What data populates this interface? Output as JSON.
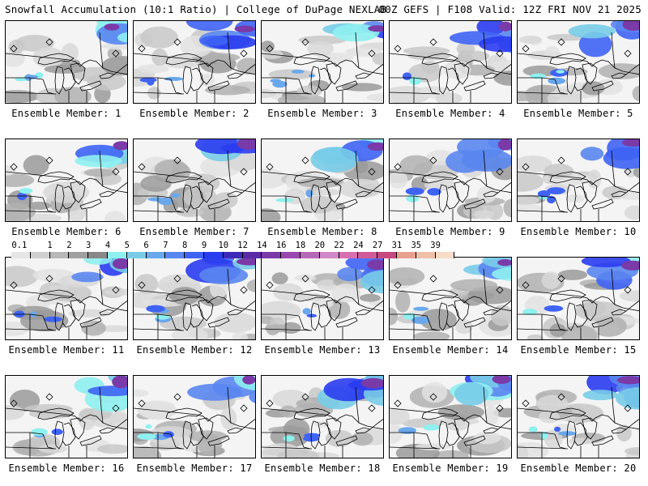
{
  "header": {
    "title": "Snowfall Accumulation (10:1 Ratio) | College of DuPage NEXLAB",
    "run_info": "00Z GEFS | F108 Valid: 12Z FRI NOV 21 2025"
  },
  "legend": {
    "ticks": [
      "0.1",
      "1",
      "2",
      "3",
      "4",
      "5",
      "6",
      "7",
      "8",
      "9",
      "10",
      "12",
      "14",
      "16",
      "18",
      "20",
      "22",
      "24",
      "27",
      "31",
      "35",
      "39"
    ],
    "colors": [
      "#e6e6e6",
      "#cfcfcf",
      "#b8b8b8",
      "#a0a0a0",
      "#888888",
      "#8ff0f0",
      "#78cce8",
      "#6aa8ec",
      "#5a86f0",
      "#3f64f4",
      "#2a3cf0",
      "#3e2ab8",
      "#5a2aa8",
      "#7a3aa8",
      "#9a48b0",
      "#b868b8",
      "#d088c8",
      "#d870b0",
      "#d05a98",
      "#c84880",
      "#e8a090",
      "#f0c0a8",
      "#f8dcc8"
    ]
  },
  "members": [
    {
      "label": "Ensemble Member: 1"
    },
    {
      "label": "Ensemble Member: 2"
    },
    {
      "label": "Ensemble Member: 3"
    },
    {
      "label": "Ensemble Member: 4"
    },
    {
      "label": "Ensemble Member: 5"
    },
    {
      "label": "Ensemble Member: 6"
    },
    {
      "label": "Ensemble Member: 7"
    },
    {
      "label": "Ensemble Member: 8"
    },
    {
      "label": "Ensemble Member: 9"
    },
    {
      "label": "Ensemble Member: 10"
    },
    {
      "label": "Ensemble Member: 11"
    },
    {
      "label": "Ensemble Member: 12"
    },
    {
      "label": "Ensemble Member: 13"
    },
    {
      "label": "Ensemble Member: 14"
    },
    {
      "label": "Ensemble Member: 15"
    },
    {
      "label": "Ensemble Member: 16"
    },
    {
      "label": "Ensemble Member: 17"
    },
    {
      "label": "Ensemble Member: 18"
    },
    {
      "label": "Ensemble Member: 19"
    },
    {
      "label": "Ensemble Member: 20"
    }
  ]
}
